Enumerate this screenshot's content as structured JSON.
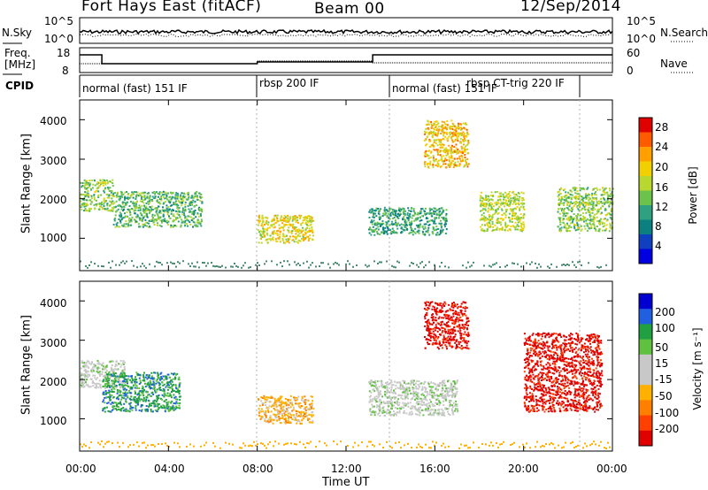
{
  "header": {
    "station": "Fort Hays East (fitACF)",
    "beam": "Beam 00",
    "date": "12/Sep/2014"
  },
  "strip_labels": {
    "nsky": "N.Sky",
    "freq_line1": "Freq.",
    "freq_line2": "[MHz]",
    "cpid": "CPID",
    "nsearch": "N.Search",
    "nave": "Nave"
  },
  "strip_ticks": {
    "left_top": [
      "10^5",
      "10^0"
    ],
    "left_freq": [
      "18",
      "8"
    ],
    "right_top": [
      "10^5",
      "10^0"
    ],
    "right_nave": [
      "60",
      "0"
    ]
  },
  "cpid_segments": [
    {
      "label": "normal (fast) 151 IF",
      "start": "00:00",
      "end": "08:00"
    },
    {
      "label": "rbsp 200 IF",
      "start": "08:00",
      "end": "14:00"
    },
    {
      "label": "normal (fast) 151 IF",
      "start": "14:00",
      "end": "18:00"
    },
    {
      "label": "rbsp CT-trig 220 IF",
      "start": "18:00",
      "end": "22:30"
    }
  ],
  "axes": {
    "x_label": "Time UT",
    "x_ticks": [
      "00:00",
      "04:00",
      "08:00",
      "12:00",
      "16:00",
      "20:00",
      "00:00"
    ],
    "y_label": "Slant Range [km]",
    "y_ticks": [
      "1000",
      "2000",
      "3000",
      "4000"
    ]
  },
  "power_colorbar": {
    "label": "Power [dB]",
    "ticks": [
      "28",
      "24",
      "20",
      "16",
      "12",
      "8",
      "4"
    ],
    "colors": [
      "#e00000",
      "#ff5a00",
      "#ffa000",
      "#f2d000",
      "#b8d830",
      "#6cc34c",
      "#2fa080",
      "#0a8080",
      "#1040c0",
      "#0000e0"
    ]
  },
  "velocity_colorbar": {
    "label": "Velocity [m s⁻¹]",
    "ticks": [
      "200",
      "100",
      "50",
      "15",
      "-15",
      "-50",
      "-100",
      "-200"
    ],
    "colors": [
      "#0000d0",
      "#2060e0",
      "#20a040",
      "#60c040",
      "#c8c8c8",
      "#c8c8c8",
      "#ffb000",
      "#ff8000",
      "#ff4000",
      "#e00000"
    ]
  },
  "chart_data": {
    "type": "heatmap",
    "x_range_hours": [
      0,
      24
    ],
    "y_range_km": [
      180,
      4500
    ],
    "series": [
      {
        "name": "Power [dB]",
        "features": [
          {
            "t_start": 0.0,
            "t_end": 1.5,
            "range_km": [
              1700,
              2500
            ],
            "value": 16
          },
          {
            "t_start": 1.5,
            "t_end": 5.5,
            "range_km": [
              1300,
              2200
            ],
            "value": 14
          },
          {
            "t_start": 8.0,
            "t_end": 10.5,
            "range_km": [
              900,
              1600
            ],
            "value": 20
          },
          {
            "t_start": 13.0,
            "t_end": 16.5,
            "range_km": [
              1100,
              1800
            ],
            "value": 12
          },
          {
            "t_start": 15.5,
            "t_end": 17.5,
            "range_km": [
              2800,
              4000
            ],
            "value": 22
          },
          {
            "t_start": 18.0,
            "t_end": 20.0,
            "range_km": [
              1200,
              2200
            ],
            "value": 18
          },
          {
            "t_start": 21.5,
            "t_end": 24.0,
            "range_km": [
              1200,
              2300
            ],
            "value": 16
          }
        ]
      },
      {
        "name": "Velocity [m s⁻¹]",
        "features": [
          {
            "t_start": 0.0,
            "t_end": 2.0,
            "range_km": [
              1800,
              2500
            ],
            "value": -10
          },
          {
            "t_start": 1.0,
            "t_end": 4.5,
            "range_km": [
              1200,
              2200
            ],
            "value": 60
          },
          {
            "t_start": 8.0,
            "t_end": 10.5,
            "range_km": [
              900,
              1600
            ],
            "value": -40
          },
          {
            "t_start": 13.0,
            "t_end": 17.0,
            "range_km": [
              1100,
              2000
            ],
            "value": -5
          },
          {
            "t_start": 15.5,
            "t_end": 17.5,
            "range_km": [
              2800,
              4000
            ],
            "value": -180
          },
          {
            "t_start": 20.0,
            "t_end": 23.5,
            "range_km": [
              1200,
              3200
            ],
            "value": -150
          }
        ]
      }
    ]
  }
}
